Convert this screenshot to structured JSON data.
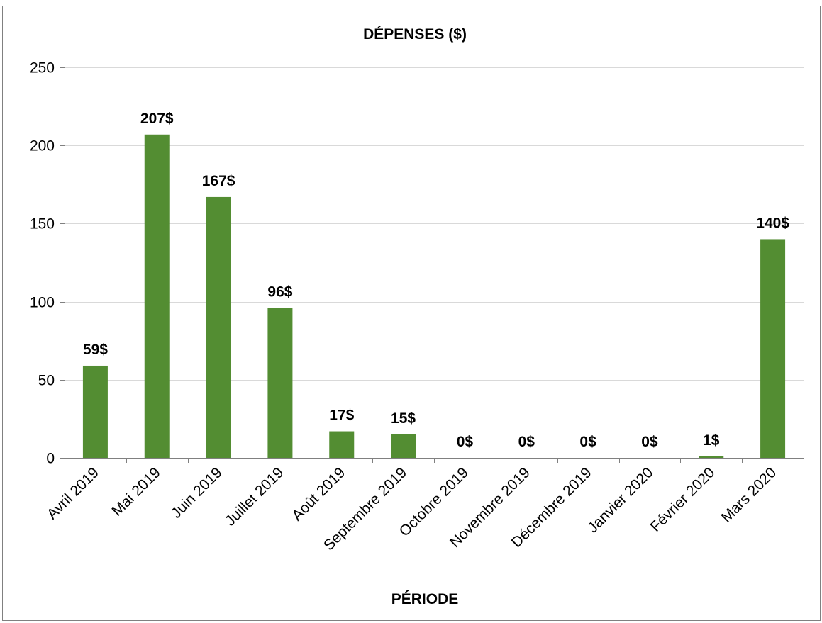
{
  "chart_data": {
    "type": "bar",
    "title": "DÉPENSES ($)",
    "xlabel": "PÉRIODE",
    "ylabel": "",
    "ylim": [
      0,
      250
    ],
    "yticks": [
      0,
      50,
      100,
      150,
      200,
      250
    ],
    "grid": true,
    "categories": [
      "Avril 2019",
      "Mai 2019",
      "Juin 2019",
      "Juillet 2019",
      "Août 2019",
      "Septembre 2019",
      "Octobre 2019",
      "Novembre 2019",
      "Décembre 2019",
      "Janvier 2020",
      "Février 2020",
      "Mars 2020"
    ],
    "values": [
      59,
      207,
      167,
      96,
      17,
      15,
      0,
      0,
      0,
      0,
      1,
      140
    ],
    "data_labels": [
      "59$",
      "207$",
      "167$",
      "96$",
      "17$",
      "15$",
      "0$",
      "0$",
      "0$",
      "0$",
      "1$",
      "140$"
    ],
    "bar_color": "#538d32"
  }
}
